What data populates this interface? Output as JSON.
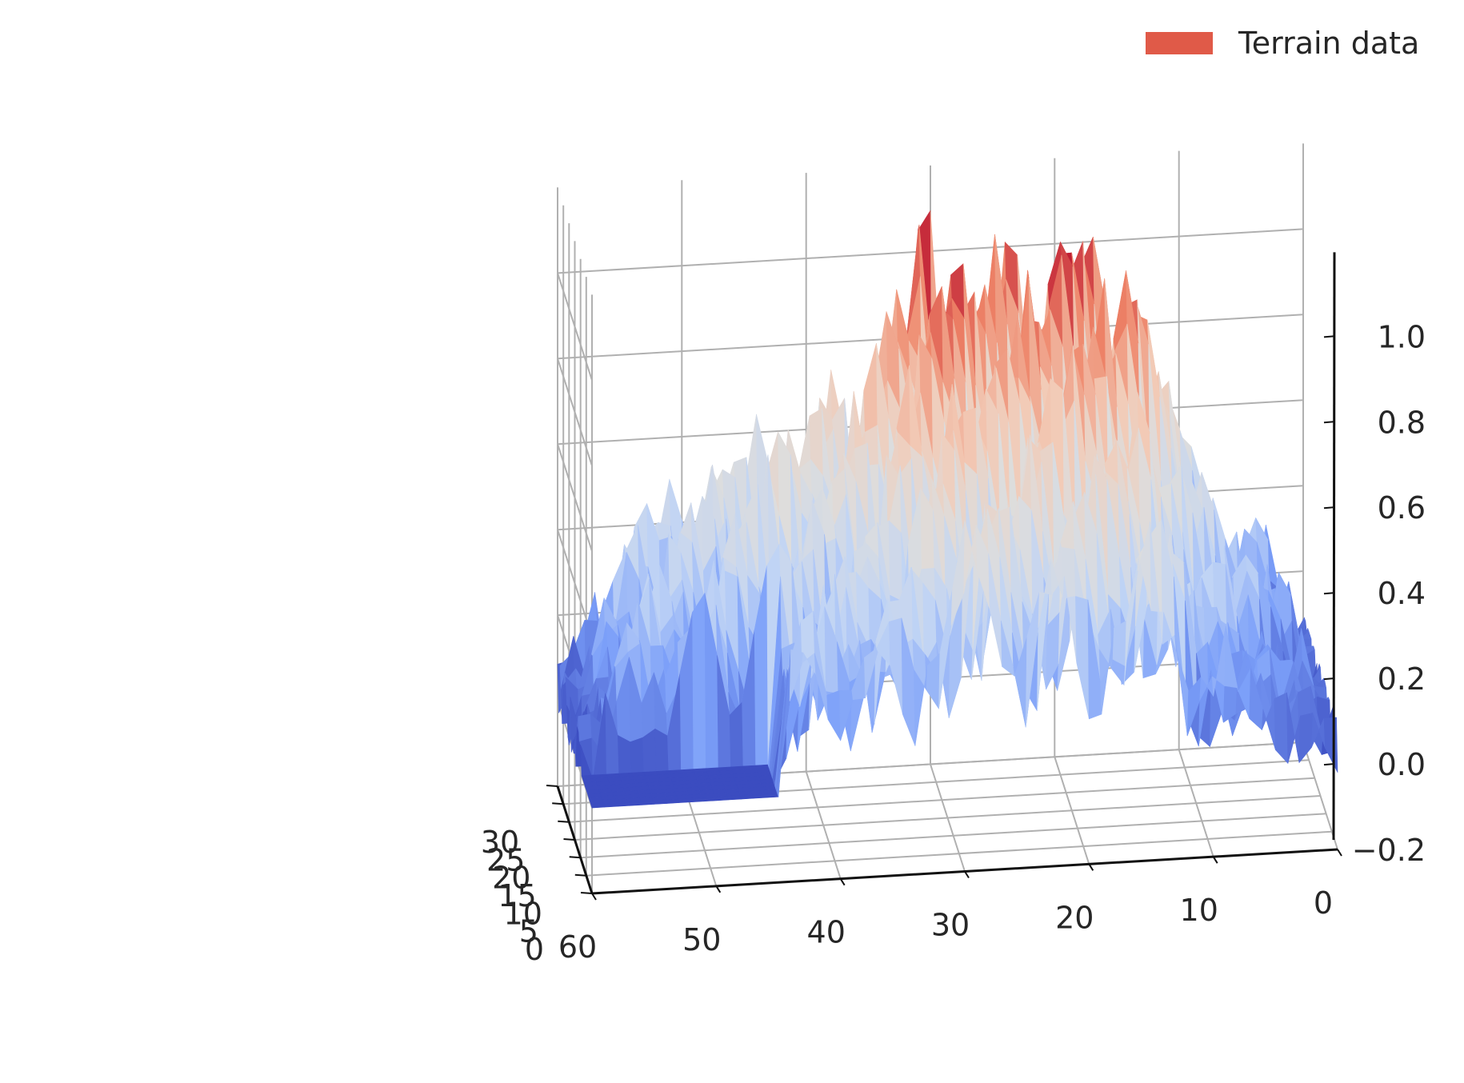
{
  "chart_data": {
    "type": "surface3d",
    "title": "",
    "legend": {
      "label": "Terrain data",
      "color": "#e05a48",
      "placement": "top-right"
    },
    "colormap": "coolwarm",
    "colormap_stops": [
      "#3b4cc0",
      "#7b9ff9",
      "#c0d4f5",
      "#dddddd",
      "#f2cbb7",
      "#ee8468",
      "#b40426"
    ],
    "x_axis": {
      "label": "",
      "range": [
        0,
        60
      ],
      "ticks": [
        60,
        50,
        40,
        30,
        20,
        10,
        0
      ],
      "tick_labels": [
        "60",
        "50",
        "40",
        "30",
        "20",
        "10",
        "0"
      ]
    },
    "y_axis": {
      "label": "",
      "range": [
        0,
        30
      ],
      "ticks": [
        30,
        25,
        20,
        15,
        10,
        5,
        0
      ],
      "tick_labels": [
        "30",
        "25",
        "20",
        "15",
        "10",
        "5",
        "0"
      ]
    },
    "z_axis": {
      "label": "",
      "range": [
        -0.2,
        1.2
      ],
      "ticks": [
        -0.2,
        0.0,
        0.2,
        0.4,
        0.6,
        0.8,
        1.0
      ],
      "tick_labels": [
        "−0.2",
        "0.0",
        "0.2",
        "0.4",
        "0.6",
        "0.8",
        "1.0"
      ]
    },
    "grid": true,
    "surface_profile": {
      "description_keys": [
        "x_center",
        "ridge_peak_z",
        "floor_z"
      ],
      "x": [
        0,
        5,
        10,
        15,
        20,
        25,
        30,
        35,
        40,
        45,
        50,
        55,
        60
      ],
      "max_z_by_x": [
        0.12,
        0.3,
        0.5,
        0.95,
        1.0,
        0.95,
        1.05,
        0.75,
        0.6,
        0.55,
        0.45,
        0.35,
        0.02
      ]
    }
  }
}
